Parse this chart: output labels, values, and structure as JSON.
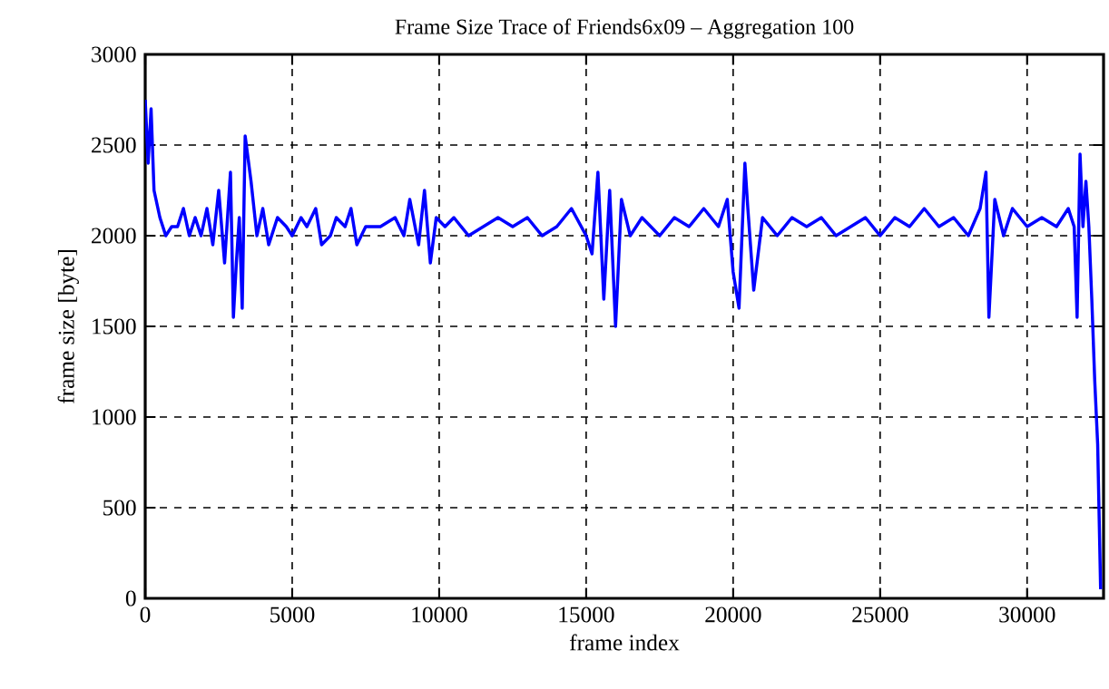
{
  "chart_data": {
    "type": "line",
    "title": "Frame Size Trace of Friends6x09 – Aggregation 100",
    "xlabel": "frame index",
    "ylabel": "frame size [byte]",
    "x": [
      0,
      100,
      200,
      300,
      500,
      700,
      900,
      1100,
      1300,
      1500,
      1700,
      1900,
      2100,
      2300,
      2500,
      2700,
      2900,
      3000,
      3100,
      3200,
      3300,
      3400,
      3600,
      3800,
      4000,
      4200,
      4500,
      4800,
      5000,
      5300,
      5500,
      5800,
      6000,
      6300,
      6500,
      6800,
      7000,
      7200,
      7500,
      8000,
      8500,
      8800,
      9000,
      9300,
      9500,
      9700,
      9900,
      10200,
      10500,
      11000,
      11500,
      12000,
      12500,
      13000,
      13500,
      14000,
      14500,
      15000,
      15200,
      15400,
      15600,
      15800,
      16000,
      16200,
      16500,
      16900,
      17200,
      17500,
      18000,
      18500,
      19000,
      19500,
      19800,
      20000,
      20200,
      20400,
      20500,
      20700,
      21000,
      21500,
      22000,
      22500,
      23000,
      23500,
      24000,
      24500,
      25000,
      25500,
      26000,
      26500,
      27000,
      27500,
      28000,
      28400,
      28600,
      28700,
      28900,
      29200,
      29500,
      30000,
      30500,
      31000,
      31400,
      31600,
      31700,
      31800,
      31900,
      32000,
      32100,
      32200,
      32300,
      32400,
      32500
    ],
    "series": [
      {
        "color": "#0000ff",
        "values": [
          2750,
          2400,
          2700,
          2250,
          2100,
          2000,
          2050,
          2050,
          2150,
          2000,
          2100,
          2000,
          2150,
          1950,
          2250,
          1850,
          2350,
          1550,
          1850,
          2100,
          1600,
          2550,
          2300,
          2000,
          2150,
          1950,
          2100,
          2050,
          2000,
          2100,
          2050,
          2150,
          1950,
          2000,
          2100,
          2050,
          2150,
          1950,
          2050,
          2050,
          2100,
          2000,
          2200,
          1950,
          2250,
          1850,
          2100,
          2050,
          2100,
          2000,
          2050,
          2100,
          2050,
          2100,
          2000,
          2050,
          2150,
          2000,
          1900,
          2350,
          1650,
          2250,
          1500,
          2200,
          2000,
          2100,
          2050,
          2000,
          2100,
          2050,
          2150,
          2050,
          2200,
          1800,
          1600,
          2400,
          2150,
          1700,
          2100,
          2000,
          2100,
          2050,
          2100,
          2000,
          2050,
          2100,
          2000,
          2100,
          2050,
          2150,
          2050,
          2100,
          2000,
          2150,
          2350,
          1550,
          2200,
          2000,
          2150,
          2050,
          2100,
          2050,
          2150,
          2050,
          1550,
          2450,
          2050,
          2300,
          2050,
          1650,
          1200,
          850,
          50
        ]
      }
    ],
    "xlim": [
      0,
      32600
    ],
    "ylim": [
      0,
      3000
    ],
    "xticks": [
      0,
      5000,
      10000,
      15000,
      20000,
      25000,
      30000
    ],
    "yticks": [
      0,
      500,
      1000,
      1500,
      2000,
      2500,
      3000
    ],
    "grid": true,
    "marker": "none",
    "line_style": "solid"
  }
}
